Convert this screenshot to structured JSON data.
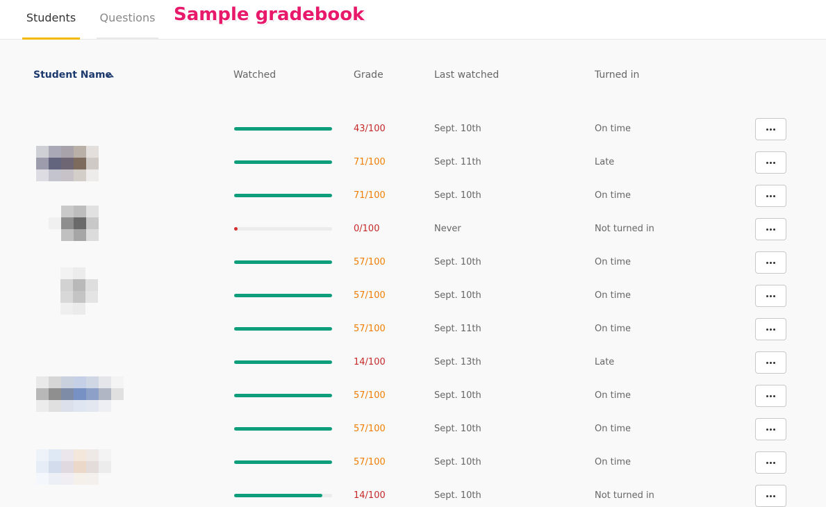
{
  "tabs": [
    "Students",
    "Questions"
  ],
  "annotation": "Sample gradebook",
  "columns": [
    "Student Name",
    "Watched",
    "Grade",
    "Last watched",
    "Turned in"
  ],
  "rows": [
    {
      "watched": 1.0,
      "grade": "43/100",
      "grade_color": "#c62828",
      "last_watched": "Sept. 10th",
      "turned_in": "On time"
    },
    {
      "watched": 1.0,
      "grade": "71/100",
      "grade_color": "#ef7d00",
      "last_watched": "Sept. 11th",
      "turned_in": "Late"
    },
    {
      "watched": 1.0,
      "grade": "71/100",
      "grade_color": "#ef7d00",
      "last_watched": "Sept. 10th",
      "turned_in": "On time"
    },
    {
      "watched": 0.0,
      "grade": "0/100",
      "grade_color": "#c62828",
      "last_watched": "Never",
      "turned_in": "Not turned in"
    },
    {
      "watched": 1.0,
      "grade": "57/100",
      "grade_color": "#ef7d00",
      "last_watched": "Sept. 10th",
      "turned_in": "On time"
    },
    {
      "watched": 1.0,
      "grade": "57/100",
      "grade_color": "#ef7d00",
      "last_watched": "Sept. 10th",
      "turned_in": "On time"
    },
    {
      "watched": 1.0,
      "grade": "57/100",
      "grade_color": "#ef7d00",
      "last_watched": "Sept. 11th",
      "turned_in": "On time"
    },
    {
      "watched": 1.0,
      "grade": "14/100",
      "grade_color": "#c62828",
      "last_watched": "Sept. 13th",
      "turned_in": "Late"
    },
    {
      "watched": 1.0,
      "grade": "57/100",
      "grade_color": "#ef7d00",
      "last_watched": "Sept. 10th",
      "turned_in": "On time"
    },
    {
      "watched": 1.0,
      "grade": "57/100",
      "grade_color": "#ef7d00",
      "last_watched": "Sept. 10th",
      "turned_in": "On time"
    },
    {
      "watched": 1.0,
      "grade": "57/100",
      "grade_color": "#ef7d00",
      "last_watched": "Sept. 10th",
      "turned_in": "On time"
    },
    {
      "watched": 0.9,
      "grade": "14/100",
      "grade_color": "#c62828",
      "last_watched": "Sept. 10th",
      "turned_in": "Not turned in"
    }
  ]
}
